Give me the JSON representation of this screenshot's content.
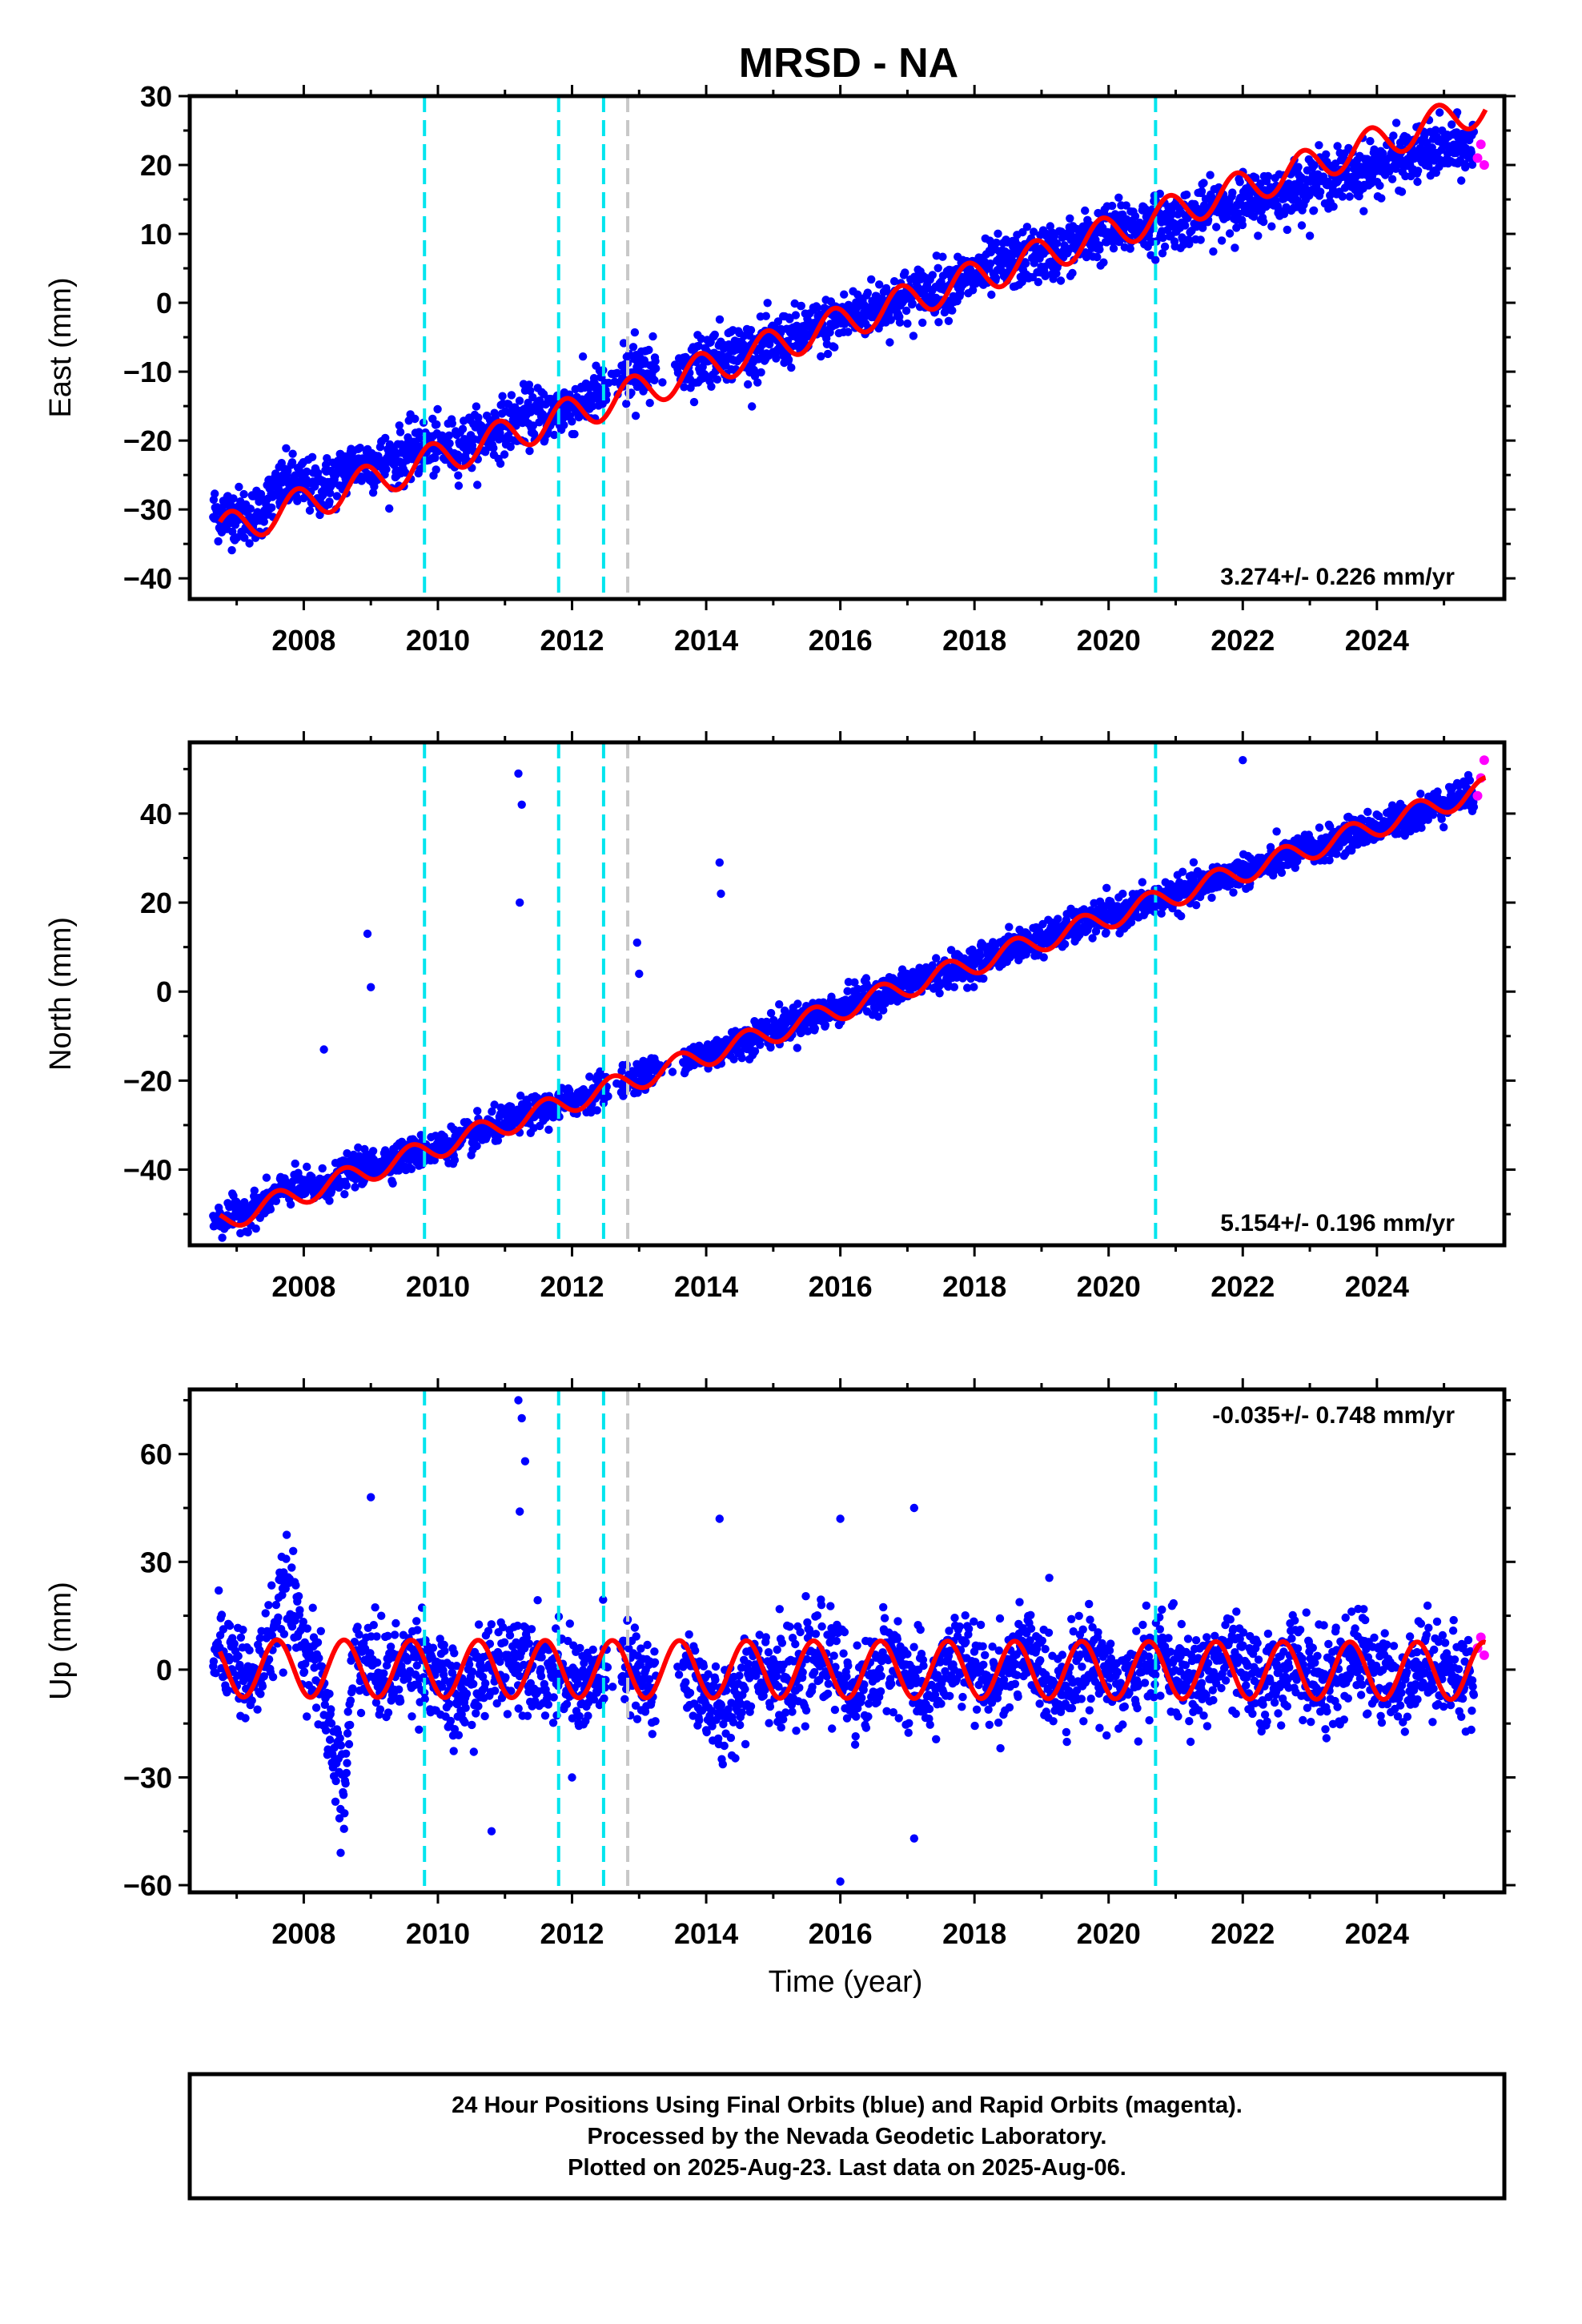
{
  "title": "MRSD - NA",
  "xlabel": "Time (year)",
  "caption": [
    "24 Hour Positions Using Final Orbits (blue) and Rapid Orbits (magenta).",
    "Processed by the Nevada Geodetic Laboratory.",
    "Plotted on 2025-Aug-23. Last data on 2025-Aug-06."
  ],
  "colors": {
    "final_orbits": "#0000ff",
    "rapid_orbits": "#ff00ff",
    "model": "#ff0000",
    "offset_equipment": "#00e5ee",
    "offset_other": "#c8c8c8"
  },
  "chart_data": [
    {
      "type": "scatter",
      "component": "east",
      "ylabel": "East (mm)",
      "xlim": [
        2006.3,
        2025.9
      ],
      "ylim": [
        -43,
        30
      ],
      "yticks": [
        -40,
        -30,
        -20,
        -10,
        0,
        10,
        20,
        30
      ],
      "xticks": [
        2008,
        2010,
        2012,
        2014,
        2016,
        2018,
        2020,
        2022,
        2024
      ],
      "rate_label": "3.274+/- 0.226 mm/yr",
      "rate_position": "bottom-right",
      "series": [
        {
          "name": "Final Orbits",
          "values": [
            [
              2006.75,
              -30.5
            ],
            [
              2007.25,
              -31
            ],
            [
              2007.75,
              -26
            ],
            [
              2008.25,
              -27
            ],
            [
              2008.75,
              -23.5
            ],
            [
              2009.25,
              -23
            ],
            [
              2009.75,
              -21
            ],
            [
              2010.25,
              -21
            ],
            [
              2010.75,
              -19
            ],
            [
              2011.25,
              -16.5
            ],
            [
              2011.75,
              -16
            ],
            [
              2012.25,
              -14
            ],
            [
              2012.75,
              -11
            ],
            [
              2013.25,
              -9.5
            ],
            [
              2013.75,
              -9
            ],
            [
              2014.25,
              -7
            ],
            [
              2014.75,
              -7
            ],
            [
              2015.25,
              -5
            ],
            [
              2015.75,
              -3.5
            ],
            [
              2016.25,
              -1.5
            ],
            [
              2016.75,
              0
            ],
            [
              2017.25,
              1.5
            ],
            [
              2017.75,
              3
            ],
            [
              2018.25,
              5
            ],
            [
              2018.75,
              6.5
            ],
            [
              2019.25,
              7.5
            ],
            [
              2019.75,
              9.5
            ],
            [
              2020.25,
              11
            ],
            [
              2020.75,
              11.5
            ],
            [
              2021.25,
              12.5
            ],
            [
              2021.75,
              14
            ],
            [
              2022.25,
              15
            ],
            [
              2022.75,
              16.5
            ],
            [
              2023.25,
              18
            ],
            [
              2023.75,
              19
            ],
            [
              2024.25,
              20.5
            ],
            [
              2024.75,
              22
            ],
            [
              2025.25,
              22.5
            ]
          ]
        },
        {
          "name": "Rapid Orbits",
          "values": [
            [
              2025.5,
              21
            ],
            [
              2025.55,
              23
            ],
            [
              2025.6,
              20
            ]
          ]
        }
      ],
      "model": {
        "rate_mm_per_yr": 3.274,
        "value_at_2016": -3.0,
        "annual_amplitude": 2.5,
        "phase_year": 2006.9
      },
      "offsets_equipment": [
        2009.8,
        2011.8,
        2012.47,
        2020.7
      ],
      "offsets_other": [
        2012.83
      ]
    },
    {
      "type": "scatter",
      "component": "north",
      "ylabel": "North (mm)",
      "xlim": [
        2006.3,
        2025.9
      ],
      "ylim": [
        -57,
        56
      ],
      "yticks": [
        -40,
        -20,
        0,
        20,
        40
      ],
      "xticks": [
        2008,
        2010,
        2012,
        2014,
        2016,
        2018,
        2020,
        2022,
        2024
      ],
      "rate_label": "5.154+/- 0.196 mm/yr",
      "rate_position": "bottom-right",
      "series": [
        {
          "name": "Final Orbits",
          "values": [
            [
              2006.75,
              -51
            ],
            [
              2007.25,
              -49
            ],
            [
              2007.75,
              -44
            ],
            [
              2008.25,
              -44
            ],
            [
              2008.75,
              -40
            ],
            [
              2009.25,
              -38
            ],
            [
              2009.75,
              -36
            ],
            [
              2010.25,
              -34
            ],
            [
              2010.75,
              -31
            ],
            [
              2011.25,
              -28
            ],
            [
              2011.75,
              -26
            ],
            [
              2012.25,
              -23
            ],
            [
              2012.75,
              -20
            ],
            [
              2013.25,
              -18
            ],
            [
              2013.75,
              -15
            ],
            [
              2014.25,
              -13
            ],
            [
              2014.75,
              -10
            ],
            [
              2015.25,
              -7
            ],
            [
              2015.75,
              -5
            ],
            [
              2016.25,
              -2
            ],
            [
              2016.75,
              0
            ],
            [
              2017.25,
              3
            ],
            [
              2017.75,
              5
            ],
            [
              2018.25,
              8
            ],
            [
              2018.75,
              11
            ],
            [
              2019.25,
              13
            ],
            [
              2019.75,
              16
            ],
            [
              2020.25,
              18
            ],
            [
              2020.75,
              21
            ],
            [
              2021.25,
              23
            ],
            [
              2021.75,
              26
            ],
            [
              2022.25,
              28
            ],
            [
              2022.75,
              31
            ],
            [
              2023.25,
              33
            ],
            [
              2023.75,
              36
            ],
            [
              2024.25,
              38
            ],
            [
              2024.75,
              41
            ],
            [
              2025.25,
              44
            ]
          ]
        },
        {
          "name": "Rapid Orbits",
          "values": [
            [
              2025.5,
              44
            ],
            [
              2025.55,
              48
            ],
            [
              2025.6,
              52
            ]
          ]
        }
      ],
      "outliers": [
        [
          2008.3,
          -13
        ],
        [
          2008.95,
          13
        ],
        [
          2009.0,
          1
        ],
        [
          2011.2,
          49
        ],
        [
          2011.25,
          42
        ],
        [
          2011.22,
          20
        ],
        [
          2014.2,
          29
        ],
        [
          2014.22,
          22
        ],
        [
          2012.97,
          11
        ],
        [
          2013.0,
          4
        ],
        [
          2022.0,
          52
        ]
      ],
      "model": {
        "rate_mm_per_yr": 5.154,
        "value_at_2016": -4.0,
        "annual_amplitude": 2.5,
        "phase_year": 2006.6
      },
      "offsets_equipment": [
        2009.8,
        2011.8,
        2012.47,
        2020.7
      ],
      "offsets_other": [
        2012.83
      ]
    },
    {
      "type": "scatter",
      "component": "up",
      "ylabel": "Up (mm)",
      "xlim": [
        2006.3,
        2025.9
      ],
      "ylim": [
        -62,
        78
      ],
      "yticks": [
        -60,
        -30,
        0,
        30,
        60
      ],
      "xticks": [
        2008,
        2010,
        2012,
        2014,
        2016,
        2018,
        2020,
        2022,
        2024
      ],
      "rate_label": "-0.035+/- 0.748 mm/yr",
      "rate_position": "top-right",
      "series": [
        {
          "name": "Final Orbits",
          "values": [
            [
              2006.75,
              8
            ],
            [
              2007.25,
              -5
            ],
            [
              2007.75,
              22
            ],
            [
              2008.25,
              -5
            ],
            [
              2008.6,
              -35
            ],
            [
              2008.75,
              5
            ],
            [
              2009.25,
              -2
            ],
            [
              2009.75,
              4
            ],
            [
              2010.25,
              -10
            ],
            [
              2010.75,
              0
            ],
            [
              2011.25,
              5
            ],
            [
              2011.75,
              -2
            ],
            [
              2012.25,
              -5
            ],
            [
              2012.75,
              2
            ],
            [
              2013.25,
              -5
            ],
            [
              2013.75,
              0
            ],
            [
              2014.25,
              -15
            ],
            [
              2014.75,
              3
            ],
            [
              2015.25,
              -5
            ],
            [
              2015.75,
              5
            ],
            [
              2016.25,
              -8
            ],
            [
              2016.75,
              5
            ],
            [
              2017.25,
              -8
            ],
            [
              2017.75,
              4
            ],
            [
              2018.25,
              -5
            ],
            [
              2018.75,
              5
            ],
            [
              2019.25,
              -5
            ],
            [
              2019.75,
              4
            ],
            [
              2020.25,
              -6
            ],
            [
              2020.75,
              5
            ],
            [
              2021.25,
              -5
            ],
            [
              2021.75,
              4
            ],
            [
              2022.25,
              -5
            ],
            [
              2022.75,
              3
            ],
            [
              2023.25,
              -5
            ],
            [
              2023.75,
              4
            ],
            [
              2024.25,
              -5
            ],
            [
              2024.75,
              3
            ],
            [
              2025.25,
              -3
            ]
          ]
        },
        {
          "name": "Rapid Orbits",
          "values": [
            [
              2025.5,
              6
            ],
            [
              2025.55,
              9
            ],
            [
              2025.6,
              4
            ]
          ]
        }
      ],
      "outliers": [
        [
          2011.2,
          75
        ],
        [
          2011.25,
          70
        ],
        [
          2011.22,
          44
        ],
        [
          2011.3,
          58
        ],
        [
          2009.0,
          48
        ],
        [
          2017.1,
          45
        ],
        [
          2016.0,
          42
        ],
        [
          2014.2,
          42
        ],
        [
          2016.0,
          -59
        ],
        [
          2017.1,
          -47
        ],
        [
          2010.8,
          -45
        ],
        [
          2008.55,
          -51
        ],
        [
          2012.0,
          -30
        ]
      ],
      "model": {
        "rate_mm_per_yr": -0.035,
        "value_at_2016": 0.0,
        "annual_amplitude": 8.0,
        "phase_year": 2006.6
      },
      "offsets_equipment": [
        2009.8,
        2011.8,
        2012.47,
        2020.7
      ],
      "offsets_other": [
        2012.83
      ]
    }
  ]
}
